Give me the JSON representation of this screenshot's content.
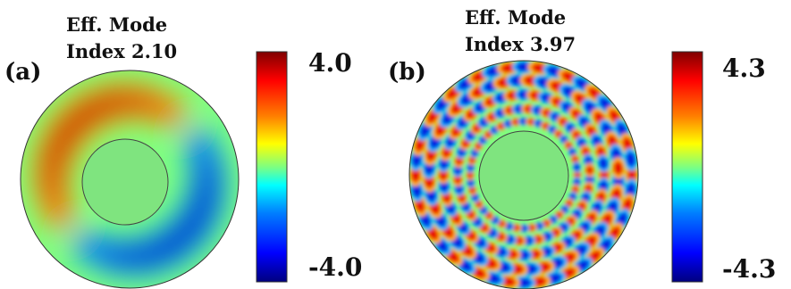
{
  "panels": [
    {
      "label": "(a)",
      "title_line1": "Eff. Mode",
      "title_line2": "Index 2.10",
      "colorbar_max": "4.0",
      "colorbar_min": "-4.0"
    },
    {
      "label": "(b)",
      "title_line1": "Eff. Mode",
      "title_line2": "Index 3.97",
      "colorbar_max": "4.3",
      "colorbar_min": "-4.3"
    }
  ],
  "colormap": [
    "#00007f",
    "#0000ff",
    "#007fff",
    "#00ffff",
    "#7fff7f",
    "#ffff00",
    "#ff7f00",
    "#ff0000",
    "#7f0000"
  ],
  "core_color": "#7fe47f",
  "background_field_color": "#7fff7f"
}
